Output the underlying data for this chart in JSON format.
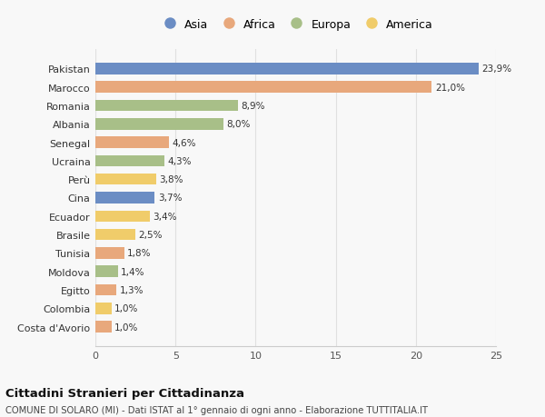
{
  "categories": [
    "Pakistan",
    "Marocco",
    "Romania",
    "Albania",
    "Senegal",
    "Ucraina",
    "Perù",
    "Cina",
    "Ecuador",
    "Brasile",
    "Tunisia",
    "Moldova",
    "Egitto",
    "Colombia",
    "Costa d'Avorio"
  ],
  "values": [
    23.9,
    21.0,
    8.9,
    8.0,
    4.6,
    4.3,
    3.8,
    3.7,
    3.4,
    2.5,
    1.8,
    1.4,
    1.3,
    1.0,
    1.0
  ],
  "labels": [
    "23,9%",
    "21,0%",
    "8,9%",
    "8,0%",
    "4,6%",
    "4,3%",
    "3,8%",
    "3,7%",
    "3,4%",
    "2,5%",
    "1,8%",
    "1,4%",
    "1,3%",
    "1,0%",
    "1,0%"
  ],
  "continents": [
    "Asia",
    "Africa",
    "Europa",
    "Europa",
    "Africa",
    "Europa",
    "America",
    "Asia",
    "America",
    "America",
    "Africa",
    "Europa",
    "Africa",
    "America",
    "Africa"
  ],
  "colors": {
    "Asia": "#6B8DC4",
    "Africa": "#E8A87C",
    "Europa": "#A8BF88",
    "America": "#F0CC6A"
  },
  "legend_order": [
    "Asia",
    "Africa",
    "Europa",
    "America"
  ],
  "title": "Cittadini Stranieri per Cittadinanza",
  "subtitle": "COMUNE DI SOLARO (MI) - Dati ISTAT al 1° gennaio di ogni anno - Elaborazione TUTTITALIA.IT",
  "xlim": [
    0,
    25
  ],
  "xticks": [
    0,
    5,
    10,
    15,
    20,
    25
  ],
  "background_color": "#f8f8f8",
  "grid_color": "#e0e0e0"
}
